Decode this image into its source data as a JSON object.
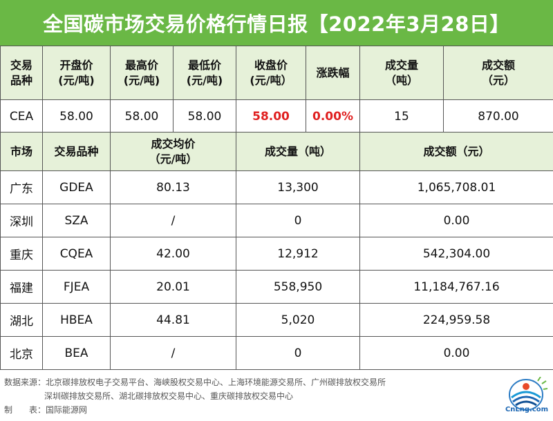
{
  "title": "全国碳市场交易价格行情日报【2022年3月28日】",
  "cea_table": {
    "headers": [
      [
        "交易",
        "品种"
      ],
      [
        "开盘价",
        "(元/吨)"
      ],
      [
        "最高价",
        "(元/吨)"
      ],
      [
        "最低价",
        "(元/吨)"
      ],
      [
        "收盘价",
        "(元/吨）"
      ],
      [
        "涨跌幅",
        ""
      ],
      [
        "成交量",
        "（吨）"
      ],
      [
        "成交额",
        "（元）"
      ]
    ],
    "row": {
      "product": "CEA",
      "open": "58.00",
      "high": "58.00",
      "low": "58.00",
      "close": "58.00",
      "change": "0.00%",
      "volume": "15",
      "turnover": "870.00"
    }
  },
  "regional_table": {
    "headers": {
      "market": "市场",
      "product": "交易品种",
      "avg_price_line1": "成交均价",
      "avg_price_line2": "（元/吨）",
      "volume": "成交量（吨）",
      "turnover": "成交额（元）"
    },
    "rows": [
      {
        "market": "广东",
        "product": "GDEA",
        "avg_price": "80.13",
        "volume": "13,300",
        "turnover": "1,065,708.01"
      },
      {
        "market": "深圳",
        "product": "SZA",
        "avg_price": "/",
        "volume": "0",
        "turnover": "0.00"
      },
      {
        "market": "重庆",
        "product": "CQEA",
        "avg_price": "42.00",
        "volume": "12,912",
        "turnover": "542,304.00"
      },
      {
        "market": "福建",
        "product": "FJEA",
        "avg_price": "20.01",
        "volume": "558,950",
        "turnover": "11,184,767.16"
      },
      {
        "market": "湖北",
        "product": "HBEA",
        "avg_price": "44.81",
        "volume": "5,020",
        "turnover": "224,959.58"
      },
      {
        "market": "北京",
        "product": "BEA",
        "avg_price": "/",
        "volume": "0",
        "turnover": "0.00"
      }
    ]
  },
  "footer": {
    "source_line1": "数据来源：北京碳排放权电子交易平台、海峡股权交易中心、上海环境能源交易所、广州碳排放权交易所",
    "source_line2": "深圳碳排放交易所、湖北碳排放权交易中心、重庆碳排放权交易中心",
    "maker": "制　　表：国际能源网"
  },
  "logo": {
    "text": "CnLng.com",
    "icon": "cnlng-logo-icon"
  },
  "colors": {
    "title_bg": "#6ab845",
    "header_bg": "#e6f1d9",
    "accent_red": "#e02020"
  }
}
